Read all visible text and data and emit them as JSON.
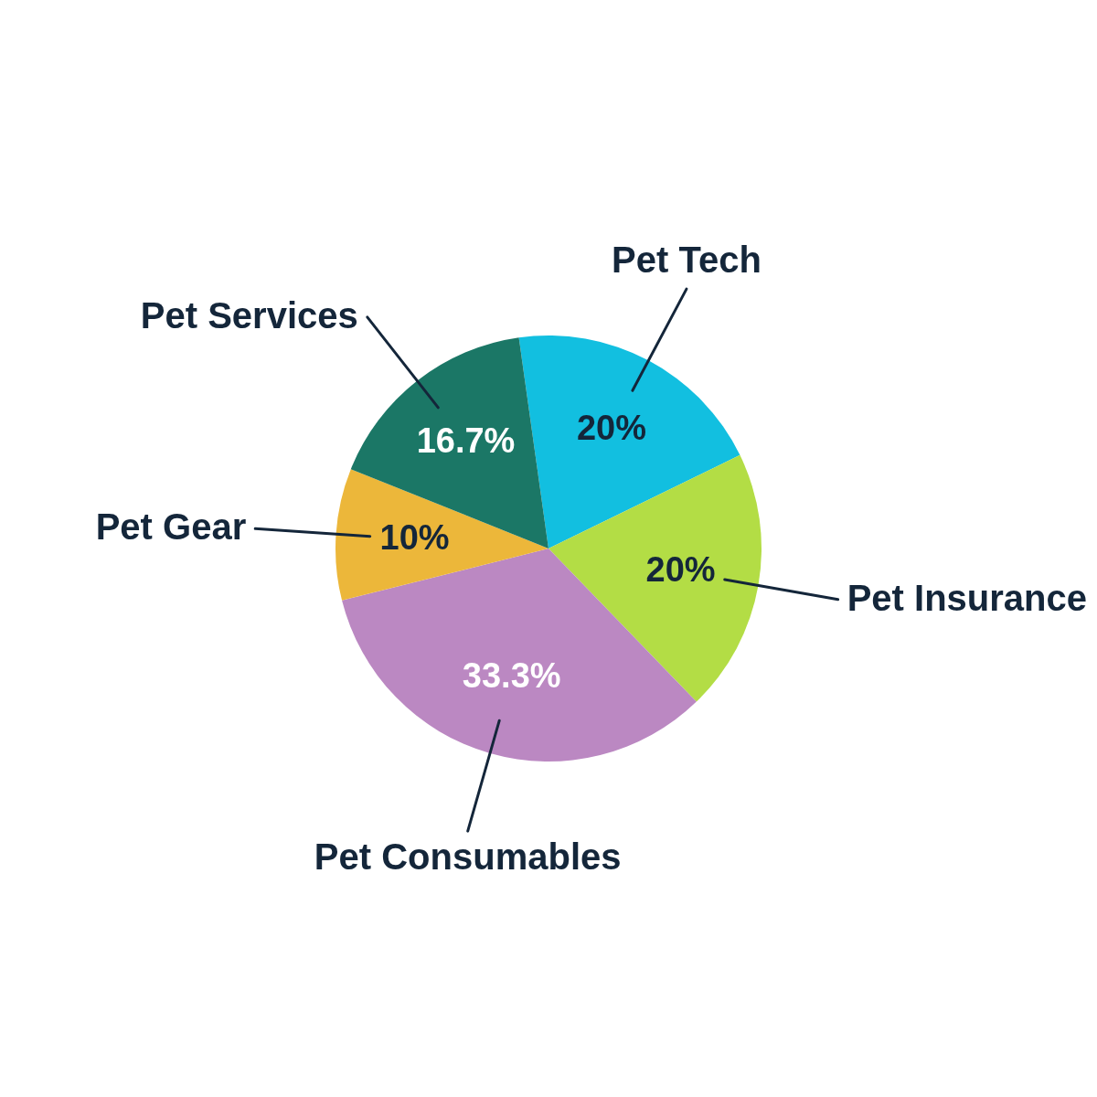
{
  "chart_data": {
    "type": "pie",
    "categories": [
      "Pet Tech",
      "Pet Insurance",
      "Pet Consumables",
      "Pet Gear",
      "Pet Services"
    ],
    "values": [
      20,
      20,
      33.3,
      10,
      16.7
    ],
    "colors": [
      "#12bfe0",
      "#b3dd45",
      "#bb88c2",
      "#ecb73a",
      "#1b7766"
    ],
    "value_labels": [
      "20%",
      "20%",
      "33.3%",
      "10%",
      "16.7%"
    ]
  }
}
